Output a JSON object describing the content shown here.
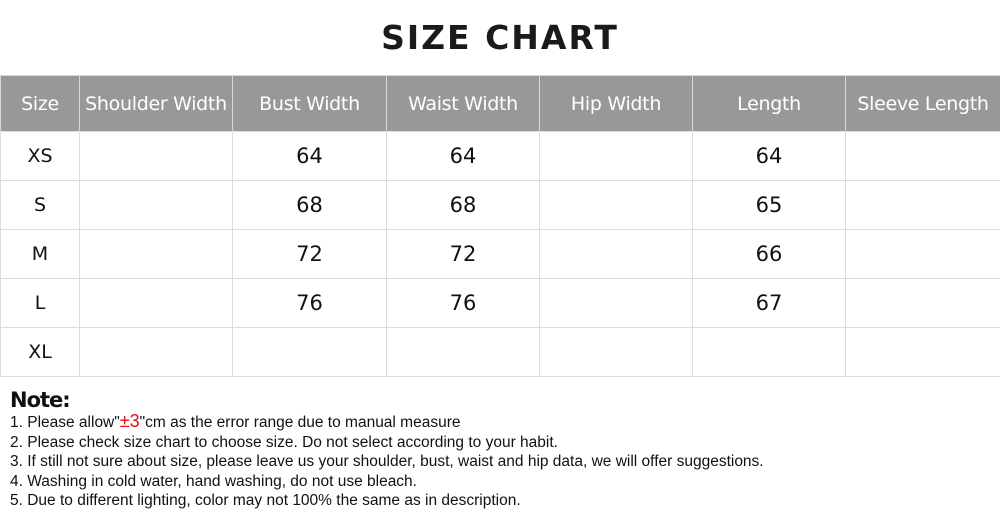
{
  "title": "SIZE CHART",
  "table": {
    "headers": [
      "Size",
      "Shoulder Width",
      "Bust Width",
      "Waist Width",
      "Hip Width",
      "Length",
      "Sleeve Length"
    ],
    "rows": [
      [
        "XS",
        "",
        "64",
        "64",
        "",
        "64",
        ""
      ],
      [
        "S",
        "",
        "68",
        "68",
        "",
        "65",
        ""
      ],
      [
        "M",
        "",
        "72",
        "72",
        "",
        "66",
        ""
      ],
      [
        "L",
        "",
        "76",
        "76",
        "",
        "67",
        ""
      ],
      [
        "XL",
        "",
        "",
        "",
        "",
        "",
        ""
      ]
    ]
  },
  "notes": {
    "title": "Note:",
    "note1": {
      "prefix": "1. Please allow\"",
      "highlight": "±3",
      "suffix": "\"cm as the error range due to manual measure"
    },
    "items": [
      "2. Please check size chart to choose size. Do not select according to your habit.",
      "3. If still not sure about size, please leave us your shoulder, bust, waist and hip data, we will offer suggestions.",
      "4. Washing in cold water, hand washing, do not use bleach.",
      "5. Due to different lighting, color may not 100% the same as in description."
    ],
    "highlight_color": "#e01010"
  },
  "colors": {
    "header_bg": "#989898",
    "header_text": "#ffffff",
    "grid": "#dcdcdc"
  }
}
